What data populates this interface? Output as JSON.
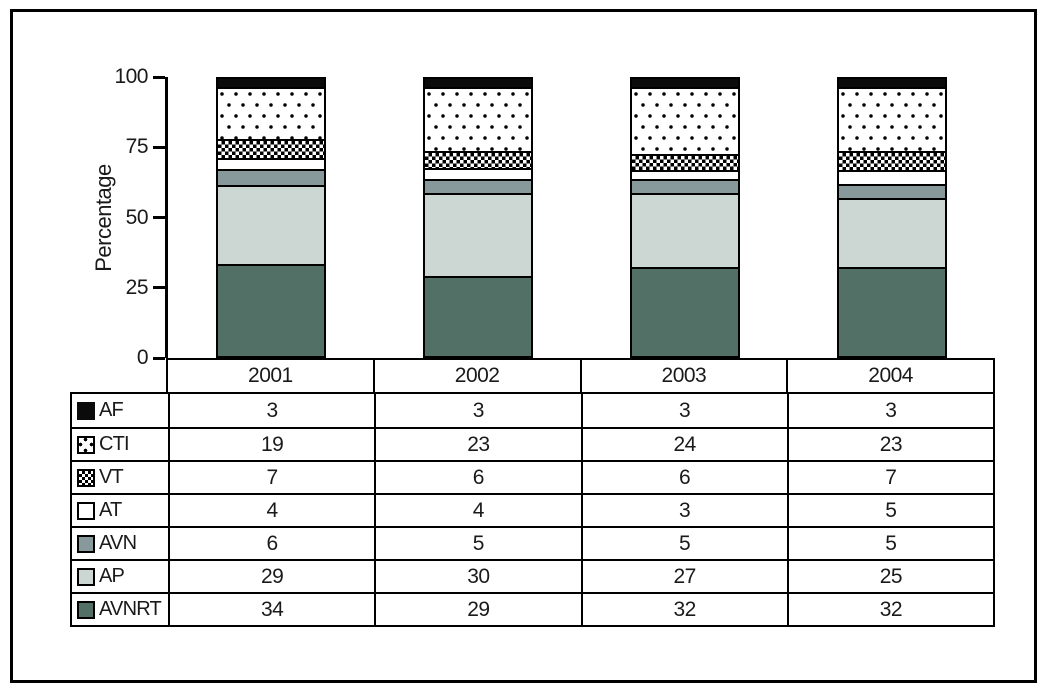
{
  "figure": {
    "background": "#ffffff",
    "frame_border_color": "#000000"
  },
  "chart_data": {
    "type": "bar",
    "variant": "stacked-percentage",
    "title": "",
    "xlabel": "",
    "ylabel": "Percentage",
    "ylim": [
      0,
      100
    ],
    "yticks": [
      0,
      25,
      50,
      75,
      100
    ],
    "grid": false,
    "legend_position": "table-left-column",
    "categories": [
      "2001",
      "2002",
      "2003",
      "2004"
    ],
    "series": [
      {
        "name": "AF",
        "key": "af",
        "pattern": "solid-black",
        "color": "#0b0b0b",
        "values": [
          3,
          3,
          3,
          3
        ]
      },
      {
        "name": "CTI",
        "key": "cti",
        "pattern": "black-dots-on-white",
        "color": "#ffffff",
        "values": [
          19,
          23,
          24,
          23
        ]
      },
      {
        "name": "VT",
        "key": "vt",
        "pattern": "checkerboard",
        "color": "#ffffff",
        "values": [
          7,
          6,
          6,
          7
        ]
      },
      {
        "name": "AT",
        "key": "at",
        "pattern": "solid-white",
        "color": "#ffffff",
        "values": [
          4,
          4,
          3,
          5
        ]
      },
      {
        "name": "AVN",
        "key": "avn",
        "pattern": "solid-gray",
        "color": "#87999b",
        "values": [
          6,
          5,
          5,
          5
        ]
      },
      {
        "name": "AP",
        "key": "ap",
        "pattern": "solid-light-gray",
        "color": "#ccd6d2",
        "values": [
          29,
          30,
          27,
          25
        ]
      },
      {
        "name": "AVNRT",
        "key": "avnrt",
        "pattern": "solid-dark-gray",
        "color": "#527066",
        "values": [
          34,
          29,
          32,
          32
        ]
      }
    ],
    "stack_order_bottom_to_top": [
      "AVNRT",
      "AP",
      "AVN",
      "AT",
      "VT",
      "CTI",
      "AF"
    ],
    "bars_sum_to": "100% of column total"
  }
}
